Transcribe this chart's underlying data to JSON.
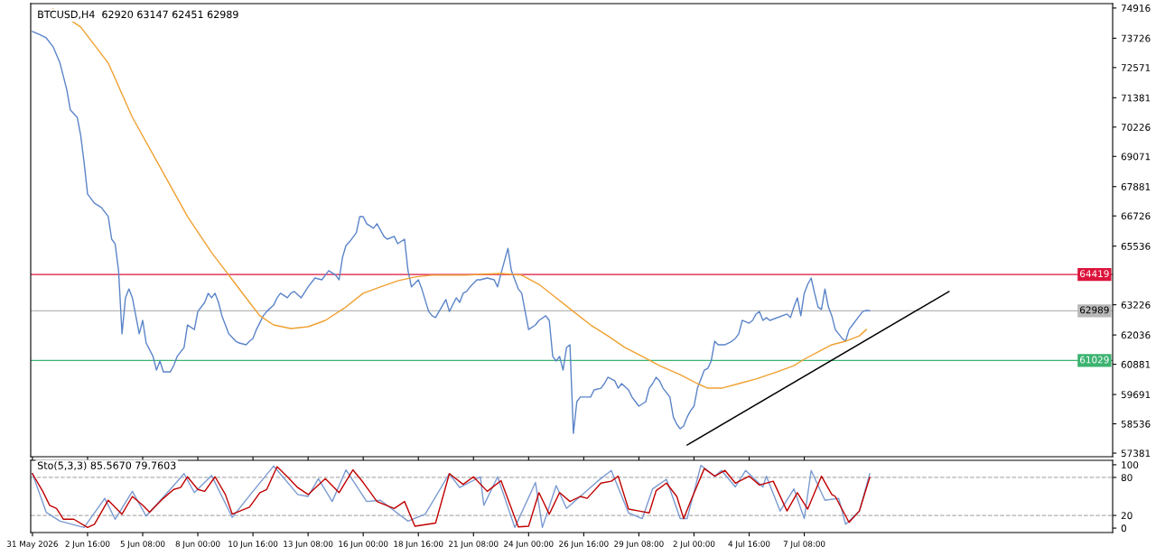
{
  "chart_data": [
    {
      "type": "line",
      "title": "BTCUSD,H4  62920 63147 62451 62989",
      "tick_labels": "y",
      "grid": false,
      "line_style": "solid",
      "xlim": [
        "2026-05-30T22:00",
        "2026-07-22T06:00"
      ],
      "ylim": [
        57240,
        75090
      ],
      "xticks": [
        {
          "value": "2026-05-31T00:00",
          "label": null
        },
        {
          "value": "2026-06-02T16:00",
          "label": null
        },
        {
          "value": "2026-06-05T08:00",
          "label": null
        },
        {
          "value": "2026-06-08T00:00",
          "label": null
        },
        {
          "value": "2026-06-10T16:00",
          "label": null
        },
        {
          "value": "2026-06-13T08:00",
          "label": null
        },
        {
          "value": "2026-06-16T00:00",
          "label": null
        },
        {
          "value": "2026-06-18T16:00",
          "label": null
        },
        {
          "value": "2026-06-21T08:00",
          "label": null
        },
        {
          "value": "2026-06-24T00:00",
          "label": null
        },
        {
          "value": "2026-06-26T16:00",
          "label": null
        },
        {
          "value": "2026-06-29T08:00",
          "label": null
        },
        {
          "value": "2026-07-02T00:00",
          "label": null
        },
        {
          "value": "2026-07-04T16:00",
          "label": null
        },
        {
          "value": "2026-07-07T08:00",
          "label": null
        }
      ],
      "yticks": [
        57381,
        58536,
        59691,
        60881,
        62036,
        63226,
        65536,
        66726,
        67881,
        69071,
        70226,
        71381,
        72571,
        73726,
        74916
      ],
      "ref_lines": [
        {
          "axis": "y",
          "value": 64419,
          "label": "64419",
          "color": "#dc143c"
        },
        {
          "axis": "y",
          "value": 62989,
          "label": "62989",
          "color": "#b8b8b8"
        },
        {
          "axis": "y",
          "value": 61029,
          "label": "61029",
          "color": "#3cb371"
        }
      ],
      "series": [
        {
          "color": "#5b84c8",
          "x": [
            "2026-05-31T00:00",
            "2026-05-31T08:00",
            "2026-05-31T16:00",
            "2026-06-01T00:00",
            "2026-06-01T08:00",
            "2026-06-01T16:00",
            "2026-06-01T20:00",
            "2026-06-02T04:00",
            "2026-06-02T08:00",
            "2026-06-02T12:00",
            "2026-06-02T16:00",
            "2026-06-03T00:00",
            "2026-06-03T08:00",
            "2026-06-03T16:00",
            "2026-06-03T20:00",
            "2026-06-04T00:00",
            "2026-06-04T04:00",
            "2026-06-04T08:00",
            "2026-06-04T12:00",
            "2026-06-04T16:00",
            "2026-06-04T20:00",
            "2026-06-05T00:00",
            "2026-06-05T04:00",
            "2026-06-05T08:00",
            "2026-06-05T12:00",
            "2026-06-05T20:00",
            "2026-06-06T00:00",
            "2026-06-06T04:00",
            "2026-06-06T08:00",
            "2026-06-06T16:00",
            "2026-06-06T20:00",
            "2026-06-07T00:00",
            "2026-06-07T08:00",
            "2026-06-07T12:00",
            "2026-06-07T20:00",
            "2026-06-08T00:00",
            "2026-06-08T08:00",
            "2026-06-08T12:00",
            "2026-06-08T16:00",
            "2026-06-08T20:00",
            "2026-06-09T00:00",
            "2026-06-09T04:00",
            "2026-06-09T08:00",
            "2026-06-09T12:00",
            "2026-06-09T20:00",
            "2026-06-10T00:00",
            "2026-06-10T08:00",
            "2026-06-10T12:00",
            "2026-06-10T16:00",
            "2026-06-10T20:00",
            "2026-06-11T04:00",
            "2026-06-11T08:00",
            "2026-06-11T16:00",
            "2026-06-11T20:00",
            "2026-06-12T00:00",
            "2026-06-12T08:00",
            "2026-06-12T12:00",
            "2026-06-12T16:00",
            "2026-06-13T00:00",
            "2026-06-13T08:00",
            "2026-06-13T16:00",
            "2026-06-14T00:00",
            "2026-06-14T04:00",
            "2026-06-14T08:00",
            "2026-06-14T16:00",
            "2026-06-14T20:00",
            "2026-06-15T00:00",
            "2026-06-15T04:00",
            "2026-06-15T08:00",
            "2026-06-15T16:00",
            "2026-06-15T20:00",
            "2026-06-16T00:00",
            "2026-06-16T04:00",
            "2026-06-16T12:00",
            "2026-06-16T16:00",
            "2026-06-17T00:00",
            "2026-06-17T04:00",
            "2026-06-17T12:00",
            "2026-06-17T16:00",
            "2026-06-18T00:00",
            "2026-06-18T04:00",
            "2026-06-18T08:00",
            "2026-06-18T16:00",
            "2026-06-18T20:00",
            "2026-06-19T04:00",
            "2026-06-19T08:00",
            "2026-06-19T12:00",
            "2026-06-19T16:00",
            "2026-06-20T00:00",
            "2026-06-20T04:00",
            "2026-06-20T12:00",
            "2026-06-20T16:00",
            "2026-06-20T20:00",
            "2026-06-21T00:00",
            "2026-06-21T04:00",
            "2026-06-21T12:00",
            "2026-06-21T16:00",
            "2026-06-22T00:00",
            "2026-06-22T08:00",
            "2026-06-22T12:00",
            "2026-06-22T16:00",
            "2026-06-23T00:00",
            "2026-06-23T04:00",
            "2026-06-23T12:00",
            "2026-06-23T16:00",
            "2026-06-23T20:00",
            "2026-06-24T00:00",
            "2026-06-24T08:00",
            "2026-06-24T12:00",
            "2026-06-24T20:00",
            "2026-06-25T00:00",
            "2026-06-25T04:00",
            "2026-06-25T08:00",
            "2026-06-25T12:00",
            "2026-06-25T16:00",
            "2026-06-25T20:00",
            "2026-06-26T00:00",
            "2026-06-26T04:00",
            "2026-06-26T08:00",
            "2026-06-26T12:00",
            "2026-06-26T20:00",
            "2026-06-27T00:00",
            "2026-06-27T04:00",
            "2026-06-27T12:00",
            "2026-06-27T16:00",
            "2026-06-27T20:00",
            "2026-06-28T04:00",
            "2026-06-28T08:00",
            "2026-06-28T12:00",
            "2026-06-28T20:00",
            "2026-06-29T00:00",
            "2026-06-29T04:00",
            "2026-06-29T08:00",
            "2026-06-29T16:00",
            "2026-06-29T20:00",
            "2026-06-30T00:00",
            "2026-06-30T04:00",
            "2026-06-30T08:00",
            "2026-06-30T12:00",
            "2026-06-30T20:00",
            "2026-07-01T00:00",
            "2026-07-01T04:00",
            "2026-07-01T08:00",
            "2026-07-01T12:00",
            "2026-07-01T16:00",
            "2026-07-01T20:00",
            "2026-07-02T00:00",
            "2026-07-02T04:00",
            "2026-07-02T12:00",
            "2026-07-02T16:00",
            "2026-07-02T20:00",
            "2026-07-03T00:00",
            "2026-07-03T04:00",
            "2026-07-03T12:00",
            "2026-07-03T16:00",
            "2026-07-03T20:00",
            "2026-07-04T00:00",
            "2026-07-04T04:00",
            "2026-07-04T08:00",
            "2026-07-04T16:00",
            "2026-07-04T20:00",
            "2026-07-05T00:00",
            "2026-07-05T04:00",
            "2026-07-05T08:00",
            "2026-07-05T12:00",
            "2026-07-05T16:00",
            "2026-07-06T12:00",
            "2026-07-06T16:00",
            "2026-07-06T20:00",
            "2026-07-07T00:00",
            "2026-07-07T04:00",
            "2026-07-07T08:00",
            "2026-07-07T12:00",
            "2026-07-07T16:00",
            "2026-07-07T20:00",
            "2026-07-08T00:00",
            "2026-07-08T04:00",
            "2026-07-08T08:00",
            "2026-07-08T12:00",
            "2026-07-08T16:00",
            "2026-07-08T20:00",
            "2026-07-09T04:00",
            "2026-07-09T08:00",
            "2026-07-09T12:00",
            "2026-07-09T16:00",
            "2026-07-10T00:00",
            "2026-07-10T04:00",
            "2026-07-10T08:00",
            "2026-07-10T12:00"
          ],
          "values": [
            73990,
            73880,
            73740,
            73390,
            72750,
            71680,
            70900,
            70610,
            69900,
            68830,
            67590,
            67230,
            67060,
            66700,
            65810,
            65630,
            64570,
            62080,
            63500,
            63850,
            63500,
            62790,
            62080,
            62610,
            61720,
            61190,
            60650,
            61010,
            60580,
            60580,
            60830,
            61190,
            61540,
            62430,
            62250,
            62960,
            63320,
            63680,
            63500,
            63680,
            63320,
            62790,
            62430,
            62080,
            61790,
            61720,
            61650,
            61790,
            61900,
            62250,
            62790,
            62960,
            63210,
            63500,
            63680,
            63500,
            63680,
            63750,
            63500,
            63930,
            64280,
            64210,
            64390,
            64570,
            64390,
            64210,
            65100,
            65560,
            65700,
            66060,
            66700,
            66700,
            66420,
            66240,
            66420,
            65920,
            65810,
            65920,
            65630,
            65810,
            64570,
            63930,
            64210,
            63850,
            62960,
            62790,
            62720,
            62960,
            63430,
            62960,
            63500,
            63320,
            63680,
            63750,
            63930,
            64210,
            64210,
            64280,
            64210,
            63930,
            64460,
            65450,
            64570,
            63850,
            63680,
            62960,
            62250,
            62430,
            62610,
            62790,
            62610,
            61190,
            61010,
            61190,
            60650,
            61540,
            61650,
            58160,
            59410,
            59590,
            59590,
            59590,
            59870,
            59940,
            60120,
            60370,
            60230,
            59940,
            60120,
            59870,
            59590,
            59410,
            59230,
            59410,
            59940,
            60120,
            60370,
            60230,
            59940,
            59590,
            58800,
            58520,
            58340,
            58450,
            58800,
            59050,
            59230,
            59940,
            60650,
            60720,
            61010,
            61790,
            61650,
            61650,
            61720,
            61790,
            61900,
            62080,
            62610,
            62500,
            62610,
            62860,
            62960,
            62610,
            62720,
            62610,
            62860,
            62720,
            63140,
            63500,
            62790,
            63680,
            64030,
            64280,
            63680,
            63140,
            63040,
            63850,
            63140,
            62790,
            62250,
            61900,
            61790,
            62250,
            62430,
            62790,
            62960,
            63000,
            62989
          ]
        },
        {
          "color": "#f0a030",
          "x": [
            "2026-06-01T00:00",
            "2026-06-02T08:00",
            "2026-06-03T16:00",
            "2026-06-04T20:00",
            "2026-06-06T04:00",
            "2026-06-07T12:00",
            "2026-06-08T16:00",
            "2026-06-09T12:00",
            "2026-06-10T12:00",
            "2026-06-11T00:00",
            "2026-06-11T16:00",
            "2026-06-12T12:00",
            "2026-06-13T08:00",
            "2026-06-14T04:00",
            "2026-06-15T04:00",
            "2026-06-16T00:00",
            "2026-06-16T20:00",
            "2026-06-17T16:00",
            "2026-06-18T12:00",
            "2026-06-19T08:00",
            "2026-06-20T04:00",
            "2026-06-21T00:00",
            "2026-06-21T20:00",
            "2026-06-22T16:00",
            "2026-06-23T16:00",
            "2026-06-24T12:00",
            "2026-06-25T08:00",
            "2026-06-26T04:00",
            "2026-06-27T00:00",
            "2026-06-27T20:00",
            "2026-06-28T16:00",
            "2026-06-29T12:00",
            "2026-06-30T08:00",
            "2026-07-01T08:00",
            "2026-07-02T04:00",
            "2026-07-02T16:00",
            "2026-07-03T08:00",
            "2026-07-04T04:00",
            "2026-07-05T00:00",
            "2026-07-06T00:00",
            "2026-07-06T20:00",
            "2026-07-07T08:00",
            "2026-07-08T00:00",
            "2026-07-08T16:00",
            "2026-07-09T08:00",
            "2026-07-10T00:00",
            "2026-07-10T08:00"
          ],
          "values": [
            74880,
            74170,
            72750,
            70610,
            68660,
            66700,
            65280,
            64390,
            63320,
            62790,
            62430,
            62290,
            62360,
            62610,
            63140,
            63680,
            63930,
            64170,
            64320,
            64390,
            64390,
            64390,
            64430,
            64460,
            64390,
            64030,
            63500,
            62960,
            62430,
            62000,
            61540,
            61190,
            60830,
            60470,
            60120,
            59940,
            59940,
            60120,
            60300,
            60580,
            60830,
            61080,
            61370,
            61650,
            61790,
            62000,
            62250
          ]
        },
        {
          "color": "#000000",
          "x": [
            "2026-07-01T16:00",
            "2026-07-14T08:00"
          ],
          "values": [
            57700,
            63750
          ]
        }
      ]
    },
    {
      "type": "line",
      "title": "Sto(5,3,3) 85.5670 79.7603",
      "grid": false,
      "line_style": "solid",
      "xlim": [
        "2026-05-30T22:00",
        "2026-07-22T06:00"
      ],
      "ylim": [
        -7,
        107
      ],
      "xticks": [
        {
          "value": "2026-05-31T00:00",
          "label": "31 May 2026"
        },
        {
          "value": "2026-06-02T16:00",
          "label": "2 Jun 16:00"
        },
        {
          "value": "2026-06-05T08:00",
          "label": "5 Jun 08:00"
        },
        {
          "value": "2026-06-08T00:00",
          "label": "8 Jun 00:00"
        },
        {
          "value": "2026-06-10T16:00",
          "label": "10 Jun 16:00"
        },
        {
          "value": "2026-06-13T08:00",
          "label": "13 Jun 08:00"
        },
        {
          "value": "2026-06-16T00:00",
          "label": "16 Jun 00:00"
        },
        {
          "value": "2026-06-18T16:00",
          "label": "18 Jun 16:00"
        },
        {
          "value": "2026-06-21T08:00",
          "label": "21 Jun 08:00"
        },
        {
          "value": "2026-06-24T00:00",
          "label": "24 Jun 00:00"
        },
        {
          "value": "2026-06-26T16:00",
          "label": "26 Jun 16:00"
        },
        {
          "value": "2026-06-29T08:00",
          "label": "29 Jun 08:00"
        },
        {
          "value": "2026-07-02T00:00",
          "label": "2 Jul 00:00"
        },
        {
          "value": "2026-07-04T16:00",
          "label": "4 Jul 16:00"
        },
        {
          "value": "2026-07-07T08:00",
          "label": "7 Jul 08:00"
        }
      ],
      "yticks": [
        0,
        20,
        80,
        100
      ],
      "ref_lines": [
        {
          "axis": "y",
          "value": 80,
          "color": "#b0b0b0",
          "line_style": "dashed"
        },
        {
          "axis": "y",
          "value": 20,
          "color": "#b0b0b0",
          "line_style": "dashed"
        }
      ],
      "series": [
        {
          "color": "#7a9ad0",
          "x": [
            "2026-05-31T00:00",
            "2026-05-31T16:00",
            "2026-06-01T08:00",
            "2026-06-02T12:00",
            "2026-06-03T12:00",
            "2026-06-04T00:00",
            "2026-06-04T20:00",
            "2026-06-05T12:00",
            "2026-06-06T16:00",
            "2026-06-07T08:00",
            "2026-06-07T20:00",
            "2026-06-08T16:00",
            "2026-06-09T16:00",
            "2026-06-10T16:00",
            "2026-06-11T16:00",
            "2026-06-12T20:00",
            "2026-06-13T08:00",
            "2026-06-13T20:00",
            "2026-06-14T12:00",
            "2026-06-15T04:00",
            "2026-06-16T04:00",
            "2026-06-16T20:00",
            "2026-06-18T04:00",
            "2026-06-19T00:00",
            "2026-06-20T04:00",
            "2026-06-20T16:00",
            "2026-06-21T16:00",
            "2026-06-21T20:00",
            "2026-06-22T12:00",
            "2026-06-23T08:00",
            "2026-06-24T08:00",
            "2026-06-24T16:00",
            "2026-06-25T08:00",
            "2026-06-25T20:00",
            "2026-06-26T12:00",
            "2026-06-27T08:00",
            "2026-06-28T00:00",
            "2026-06-28T20:00",
            "2026-06-29T12:00",
            "2026-06-30T00:00",
            "2026-06-30T16:00",
            "2026-07-01T08:00",
            "2026-07-01T16:00",
            "2026-07-02T08:00",
            "2026-07-03T00:00",
            "2026-07-03T08:00",
            "2026-07-04T00:00",
            "2026-07-04T12:00",
            "2026-07-05T08:00",
            "2026-07-05T12:00",
            "2026-07-06T04:00",
            "2026-07-06T20:00",
            "2026-07-07T08:00",
            "2026-07-07T16:00",
            "2026-07-08T08:00",
            "2026-07-09T00:00",
            "2026-07-09T08:00",
            "2026-07-10T00:00",
            "2026-07-10T12:00"
          ],
          "values": [
            86,
            25,
            11,
            1,
            47,
            14,
            58,
            19,
            61,
            86,
            56,
            83,
            17,
            58,
            98,
            53,
            50,
            78,
            42,
            92,
            42,
            44,
            11,
            22,
            86,
            64,
            81,
            36,
            81,
            1,
            72,
            1,
            67,
            31,
            50,
            74,
            91,
            24,
            15,
            62,
            77,
            15,
            15,
            99,
            82,
            91,
            65,
            91,
            65,
            82,
            27,
            62,
            15,
            91,
            44,
            47,
            6,
            27,
            86
          ]
        },
        {
          "color": "#c00000",
          "x": [
            "2026-05-31T00:00",
            "2026-05-31T12:00",
            "2026-05-31T20:00",
            "2026-06-01T04:00",
            "2026-06-01T12:00",
            "2026-06-02T00:00",
            "2026-06-02T16:00",
            "2026-06-03T00:00",
            "2026-06-03T16:00",
            "2026-06-04T08:00",
            "2026-06-04T20:00",
            "2026-06-05T08:00",
            "2026-06-05T16:00",
            "2026-06-06T08:00",
            "2026-06-06T20:00",
            "2026-06-07T04:00",
            "2026-06-07T12:00",
            "2026-06-08T00:00",
            "2026-06-08T08:00",
            "2026-06-08T20:00",
            "2026-06-09T08:00",
            "2026-06-09T16:00",
            "2026-06-10T12:00",
            "2026-06-11T00:00",
            "2026-06-11T08:00",
            "2026-06-11T20:00",
            "2026-06-12T08:00",
            "2026-06-12T20:00",
            "2026-06-13T08:00",
            "2026-06-14T04:00",
            "2026-06-14T20:00",
            "2026-06-15T12:00",
            "2026-06-16T00:00",
            "2026-06-16T16:00",
            "2026-06-17T12:00",
            "2026-06-18T00:00",
            "2026-06-18T12:00",
            "2026-06-19T12:00",
            "2026-06-20T04:00",
            "2026-06-20T20:00",
            "2026-06-21T08:00",
            "2026-06-22T00:00",
            "2026-06-22T16:00",
            "2026-06-23T12:00",
            "2026-06-24T00:00",
            "2026-06-24T12:00",
            "2026-06-25T00:00",
            "2026-06-25T12:00",
            "2026-06-26T00:00",
            "2026-06-26T12:00",
            "2026-06-26T20:00",
            "2026-06-27T12:00",
            "2026-06-28T00:00",
            "2026-06-28T08:00",
            "2026-06-28T20:00",
            "2026-06-29T08:00",
            "2026-06-29T20:00",
            "2026-06-30T04:00",
            "2026-06-30T16:00",
            "2026-07-01T04:00",
            "2026-07-01T12:00",
            "2026-07-01T20:00",
            "2026-07-02T12:00",
            "2026-07-03T00:00",
            "2026-07-03T12:00",
            "2026-07-04T00:00",
            "2026-07-04T16:00",
            "2026-07-05T04:00",
            "2026-07-05T20:00",
            "2026-07-06T12:00",
            "2026-07-07T00:00",
            "2026-07-07T12:00",
            "2026-07-08T04:00",
            "2026-07-08T16:00",
            "2026-07-08T20:00",
            "2026-07-09T12:00",
            "2026-07-10T00:00",
            "2026-07-10T12:00"
          ],
          "values": [
            86,
            58,
            36,
            31,
            14,
            14,
            1,
            6,
            44,
            22,
            50,
            36,
            25,
            47,
            61,
            64,
            81,
            61,
            58,
            81,
            53,
            22,
            33,
            56,
            61,
            97,
            81,
            64,
            53,
            78,
            56,
            92,
            72,
            42,
            31,
            42,
            3,
            8,
            86,
            69,
            81,
            58,
            75,
            2,
            3,
            56,
            22,
            56,
            42,
            50,
            47,
            71,
            74,
            82,
            30,
            27,
            24,
            59,
            71,
            50,
            15,
            42,
            94,
            82,
            91,
            71,
            82,
            68,
            74,
            27,
            56,
            30,
            82,
            53,
            50,
            9,
            27,
            80
          ]
        }
      ]
    }
  ]
}
